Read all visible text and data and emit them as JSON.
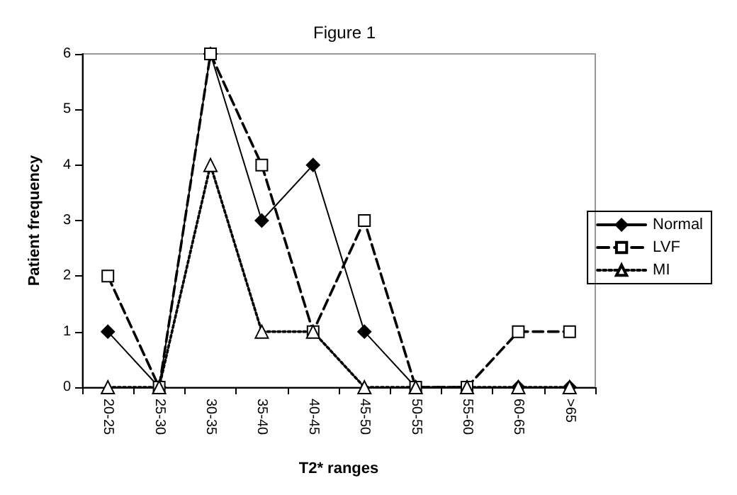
{
  "chart_data": {
    "type": "line",
    "title": "Figure 1",
    "xlabel": "T2* ranges",
    "ylabel": "Patient frequency",
    "categories": [
      "20-25",
      "25-30",
      "30-35",
      "35-40",
      "40-45",
      "45-50",
      "50-55",
      "55-60",
      "60-65",
      ">65"
    ],
    "series": [
      {
        "name": "Normal",
        "color": "#000000",
        "marker": "diamond",
        "line_style": "solid",
        "values": [
          1,
          0,
          6,
          3,
          4,
          1,
          0,
          0,
          0,
          0
        ]
      },
      {
        "name": "LVF",
        "color": "#000000",
        "marker": "square",
        "line_style": "dashed",
        "values": [
          2,
          0,
          6,
          4,
          1,
          3,
          0,
          0,
          1,
          1
        ]
      },
      {
        "name": "MI",
        "color": "#000000",
        "marker": "triangle",
        "line_style": "dotted",
        "values": [
          0,
          0,
          4,
          1,
          1,
          0,
          0,
          0,
          0,
          0
        ]
      }
    ],
    "ylim": [
      0,
      6
    ],
    "yticks": [
      0,
      1,
      2,
      3,
      4,
      5,
      6
    ],
    "grid": false,
    "legend": "right"
  }
}
